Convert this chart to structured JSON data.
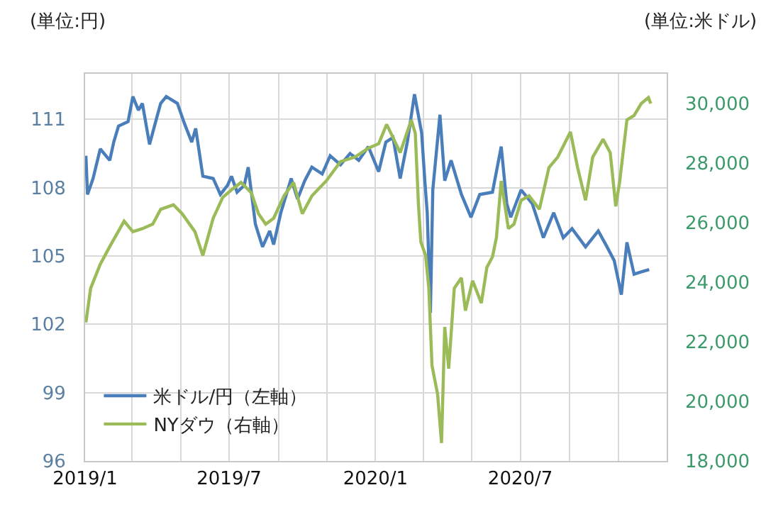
{
  "chart_data": {
    "type": "line",
    "annotations": [
      "(単位:円)",
      "(単位:米ドル)"
    ],
    "xlim": [
      "2019-01-01",
      "2021-01-01"
    ],
    "xticks": [
      {
        "value": "2019-01-01",
        "label": "2019/1"
      },
      {
        "value": "2019-03-01",
        "label": null
      },
      {
        "value": "2019-05-01",
        "label": null
      },
      {
        "value": "2019-07-01",
        "label": "2019/7"
      },
      {
        "value": "2019-09-01",
        "label": null
      },
      {
        "value": "2019-11-01",
        "label": null
      },
      {
        "value": "2020-01-01",
        "label": "2020/1"
      },
      {
        "value": "2020-03-01",
        "label": null
      },
      {
        "value": "2020-05-01",
        "label": null
      },
      {
        "value": "2020-07-01",
        "label": "2020/7"
      },
      {
        "value": "2020-09-01",
        "label": null
      },
      {
        "value": "2020-11-01",
        "label": null
      }
    ],
    "ylim": [
      96,
      113
    ],
    "yticks": [
      96,
      99,
      102,
      105,
      108,
      111
    ],
    "y2lim": [
      18000,
      31000
    ],
    "y2ticks": [
      {
        "value": 18000,
        "label": "18,000"
      },
      {
        "value": 20000,
        "label": "20,000"
      },
      {
        "value": 22000,
        "label": "22,000"
      },
      {
        "value": 24000,
        "label": "24,000"
      },
      {
        "value": 26000,
        "label": "26,000"
      },
      {
        "value": 28000,
        "label": "28,000"
      },
      {
        "value": 30000,
        "label": "30,000"
      }
    ],
    "grid": true,
    "legend": "bottom left",
    "marker": "none",
    "line_style": "solid",
    "series": [
      {
        "name": "米ドル/円（左軸）",
        "color": "#4a7ebb",
        "x": [
          "2019-01-02",
          "2019-01-04",
          "2019-01-11",
          "2019-01-20",
          "2019-02-01",
          "2019-02-06",
          "2019-02-12",
          "2019-02-24",
          "2019-03-02",
          "2019-03-09",
          "2019-03-14",
          "2019-03-23",
          "2019-04-02",
          "2019-04-06",
          "2019-04-13",
          "2019-04-27",
          "2019-05-06",
          "2019-05-15",
          "2019-05-20",
          "2019-05-29",
          "2019-06-11",
          "2019-06-20",
          "2019-06-29",
          "2019-07-04",
          "2019-07-11",
          "2019-07-20",
          "2019-07-25",
          "2019-08-03",
          "2019-08-12",
          "2019-08-21",
          "2019-08-26",
          "2019-09-04",
          "2019-09-17",
          "2019-09-25",
          "2019-10-04",
          "2019-10-13",
          "2019-10-26",
          "2019-11-05",
          "2019-11-18",
          "2019-11-30",
          "2019-12-11",
          "2019-12-23",
          "2020-01-05",
          "2020-01-14",
          "2020-01-23",
          "2020-02-01",
          "2020-02-10",
          "2020-02-19",
          "2020-02-28",
          "2020-03-03",
          "2020-03-06",
          "2020-03-10",
          "2020-03-13",
          "2020-03-22",
          "2020-03-28",
          "2020-04-05",
          "2020-04-18",
          "2020-04-30",
          "2020-05-11",
          "2020-05-27",
          "2020-06-07",
          "2020-06-14",
          "2020-06-19",
          "2020-07-02",
          "2020-07-16",
          "2020-07-30",
          "2020-08-12",
          "2020-08-24",
          "2020-09-04",
          "2020-09-21",
          "2020-10-07",
          "2020-10-18",
          "2020-10-27",
          "2020-11-05",
          "2020-11-12",
          "2020-11-21",
          "2020-11-30",
          "2020-12-10"
        ],
        "values": [
          109.4,
          107.7,
          108.4,
          109.7,
          109.2,
          110.0,
          110.7,
          110.9,
          112.0,
          111.4,
          111.7,
          109.9,
          111.2,
          111.7,
          112.0,
          111.7,
          110.8,
          110.0,
          110.6,
          108.5,
          108.4,
          107.7,
          108.1,
          108.5,
          107.8,
          108.1,
          108.9,
          106.4,
          105.4,
          106.1,
          105.5,
          106.9,
          108.4,
          107.5,
          108.3,
          108.9,
          108.6,
          109.4,
          109.0,
          109.5,
          109.2,
          109.8,
          108.7,
          110.0,
          110.2,
          108.4,
          110.0,
          112.1,
          110.4,
          108.3,
          106.9,
          102.5,
          107.9,
          111.2,
          108.3,
          109.2,
          107.7,
          106.7,
          107.7,
          107.8,
          109.8,
          107.3,
          106.7,
          107.9,
          107.3,
          105.8,
          106.9,
          105.8,
          106.2,
          105.4,
          106.1,
          105.4,
          104.8,
          103.3,
          105.6,
          104.2,
          104.3,
          104.4
        ]
      },
      {
        "name": "NYダウ（右軸）",
        "color": "#9bbb59",
        "axis": "y2",
        "x": [
          "2019-01-02",
          "2019-01-08",
          "2019-01-20",
          "2019-02-01",
          "2019-02-19",
          "2019-03-02",
          "2019-03-14",
          "2019-03-27",
          "2019-04-06",
          "2019-04-22",
          "2019-05-03",
          "2019-05-19",
          "2019-05-29",
          "2019-06-11",
          "2019-06-23",
          "2019-07-04",
          "2019-07-16",
          "2019-07-29",
          "2019-08-07",
          "2019-08-16",
          "2019-08-26",
          "2019-09-08",
          "2019-09-20",
          "2019-10-01",
          "2019-10-13",
          "2019-10-31",
          "2019-11-18",
          "2019-12-06",
          "2019-12-23",
          "2020-01-05",
          "2020-01-15",
          "2020-01-24",
          "2020-02-01",
          "2020-02-15",
          "2020-02-20",
          "2020-02-24",
          "2020-02-27",
          "2020-03-04",
          "2020-03-08",
          "2020-03-12",
          "2020-03-19",
          "2020-03-24",
          "2020-03-28",
          "2020-04-02",
          "2020-04-09",
          "2020-04-18",
          "2020-04-23",
          "2020-05-02",
          "2020-05-13",
          "2020-05-20",
          "2020-05-27",
          "2020-06-01",
          "2020-06-07",
          "2020-06-16",
          "2020-06-23",
          "2020-07-02",
          "2020-07-12",
          "2020-07-25",
          "2020-08-06",
          "2020-08-17",
          "2020-09-02",
          "2020-09-11",
          "2020-09-21",
          "2020-09-30",
          "2020-10-13",
          "2020-10-22",
          "2020-10-29",
          "2020-11-03",
          "2020-11-12",
          "2020-11-21",
          "2020-11-30",
          "2020-12-09",
          "2020-12-12"
        ],
        "values": [
          22650,
          23800,
          24600,
          25200,
          26050,
          25700,
          25800,
          25950,
          26450,
          26600,
          26300,
          25700,
          24900,
          26150,
          26850,
          27100,
          27350,
          27000,
          26300,
          25950,
          26150,
          26900,
          27350,
          26300,
          26900,
          27400,
          28050,
          28200,
          28500,
          28650,
          29300,
          28800,
          28350,
          29450,
          29000,
          26600,
          25350,
          24900,
          23800,
          21200,
          20250,
          18600,
          22500,
          21100,
          23800,
          24150,
          23050,
          24050,
          23300,
          24500,
          24850,
          25500,
          27400,
          25800,
          25950,
          26750,
          26900,
          26450,
          27850,
          28200,
          29050,
          27850,
          26750,
          28200,
          28800,
          28350,
          26550,
          27400,
          29450,
          29600,
          30000,
          30200,
          30000
        ]
      }
    ]
  }
}
